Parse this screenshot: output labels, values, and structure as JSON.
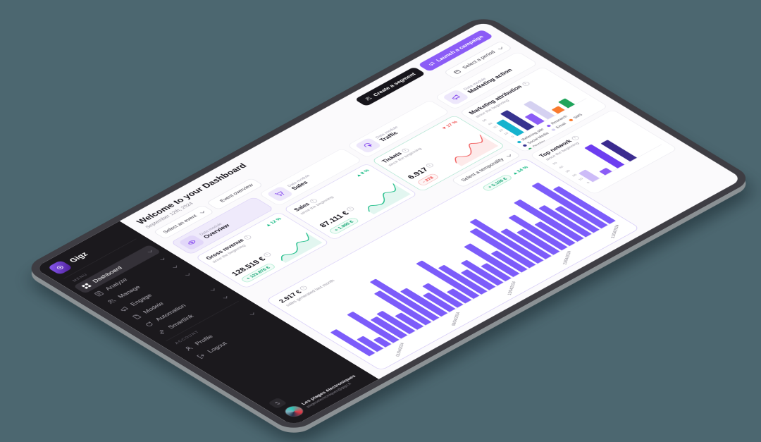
{
  "background_color": "#4C6770",
  "accent_color": "#8B5CF6",
  "brand": "Gigz",
  "sidebar": {
    "menu_label": "MENU",
    "account_label": "ACCOUNT",
    "items": [
      {
        "label": "Dashboard",
        "icon": "grid",
        "active": true,
        "chevron": true
      },
      {
        "label": "Analyze",
        "icon": "doc",
        "chevron": true
      },
      {
        "label": "Manage",
        "icon": "users",
        "chevron": true
      },
      {
        "label": "Engage",
        "icon": "megaphone",
        "chevron": true
      },
      {
        "label": "Modele",
        "icon": "file",
        "chevron": false
      },
      {
        "label": "Automation",
        "icon": "refresh",
        "chevron": true
      },
      {
        "label": "Smartlink",
        "icon": "link",
        "chevron": true
      }
    ],
    "account_items": [
      {
        "label": "Profile",
        "icon": "user",
        "chevron": true
      },
      {
        "label": "Logout",
        "icon": "logout",
        "chevron": false
      }
    ],
    "user": {
      "name": "Les plages électroniques",
      "email": "plageselectroniques@gigz.fr"
    }
  },
  "header": {
    "title": "Welcome to your Dashboard",
    "date": "September 12th, 2024",
    "create_segment": "Create a segment",
    "launch_campaign": "Launch a campaign",
    "select_event": "Select an event",
    "event_overview": "Event overview",
    "select_period": "Select a period"
  },
  "modules": [
    {
      "label": "Data module",
      "name": "Overview",
      "icon": "eye",
      "active": true
    },
    {
      "label": "Data module",
      "name": "Sales",
      "icon": "cart",
      "active": false
    },
    {
      "label": "Data module",
      "name": "Traffic",
      "icon": "click",
      "active": false
    },
    {
      "label": "Data module",
      "name": "Marketing action",
      "icon": "megaphone",
      "active": false
    }
  ],
  "stats": {
    "gross_revenue": {
      "title": "Gross revenue",
      "subtitle": "since the beginning",
      "trend": "12 %",
      "trend_dir": "up",
      "value": "128.519 €",
      "badge": "+ 123.876 €"
    },
    "sales": {
      "title": "Sales",
      "subtitle": "since the beginning",
      "trend": "8 %",
      "trend_dir": "up",
      "value": "87.111 €",
      "badge": "+ 1.990 €"
    },
    "tickets": {
      "title": "Tickets",
      "subtitle": "since the beginning",
      "trend": "17 %",
      "trend_dir": "down",
      "value": "6.917",
      "badge": "- 278"
    }
  },
  "sales_chart_card": {
    "value": "2.917 €",
    "subtitle": "sales generated last month",
    "badge": "+ 5.106 €",
    "trend": "24 %",
    "select_label": "Select a temporality"
  },
  "chart_data": [
    {
      "id": "marketing_attribution",
      "type": "bar",
      "title": "Marketing attribution",
      "subtitle": "since the beginning",
      "categories": [
        "Referring site",
        "Social Media",
        "Research",
        "Email",
        "SMS",
        "Display"
      ],
      "values": [
        42,
        54,
        26,
        48,
        13,
        20
      ],
      "colors": [
        "#16B3CE",
        "#37338F",
        "#8B5CF6",
        "#D5D1F1",
        "#F97A2E",
        "#1FA45B"
      ],
      "legend": [
        {
          "label": "Referring site",
          "color": "#16B3CE"
        },
        {
          "label": "Research",
          "color": "#8B5CF6"
        },
        {
          "label": "Social Media",
          "color": "#37338F"
        },
        {
          "label": "Email",
          "color": "#D5D1F1"
        },
        {
          "label": "SMS",
          "color": "#F97A2E"
        },
        {
          "label": "Display",
          "color": "#1FA45B"
        }
      ],
      "yticks": [
        0,
        10,
        20,
        30,
        40,
        50
      ],
      "ymax": 60,
      "legend_position": "bottom"
    },
    {
      "id": "top_network",
      "type": "bar",
      "title": "Top network",
      "subtitle": "since the beginning",
      "categories": [
        "",
        "",
        "",
        ""
      ],
      "values": [
        24,
        10,
        56,
        50
      ],
      "colors": [
        "#CDBCF8",
        "#8B5CF6",
        "#6D3DF0",
        "#3B2B8F"
      ],
      "yticks": [
        0,
        10,
        20,
        30,
        40,
        50
      ],
      "ymax": 60
    },
    {
      "id": "sales_daily",
      "type": "bar",
      "title": "Sales generated last month",
      "color": "#7C5CFA",
      "values": [
        38,
        20,
        12,
        45,
        30,
        32,
        22,
        50,
        62,
        40,
        26,
        34,
        18,
        56,
        42,
        28,
        36,
        24,
        48,
        30,
        58,
        66,
        44,
        36,
        52,
        34,
        62,
        46,
        38,
        68,
        55
      ],
      "x_labels": [
        {
          "label": "01/04/2024",
          "pos": 3
        },
        {
          "label": "08/04/2024",
          "pos": 10
        },
        {
          "label": "15/04/2024",
          "pos": 17
        },
        {
          "label": "23/04/2024",
          "pos": 24
        },
        {
          "label": "31/04/2024",
          "pos": 30
        }
      ],
      "ymax": 75
    },
    {
      "id": "gross_revenue_spark",
      "type": "line",
      "color": "#10B981",
      "values": [
        18,
        42,
        26,
        18,
        30,
        62,
        48,
        40,
        78
      ]
    },
    {
      "id": "sales_spark",
      "type": "line",
      "color": "#10B981",
      "values": [
        22,
        50,
        32,
        22,
        36,
        70,
        55,
        46,
        84
      ]
    },
    {
      "id": "tickets_spark",
      "type": "line",
      "color": "#F05252",
      "values": [
        25,
        55,
        35,
        25,
        40,
        80,
        60,
        50,
        88
      ]
    }
  ]
}
